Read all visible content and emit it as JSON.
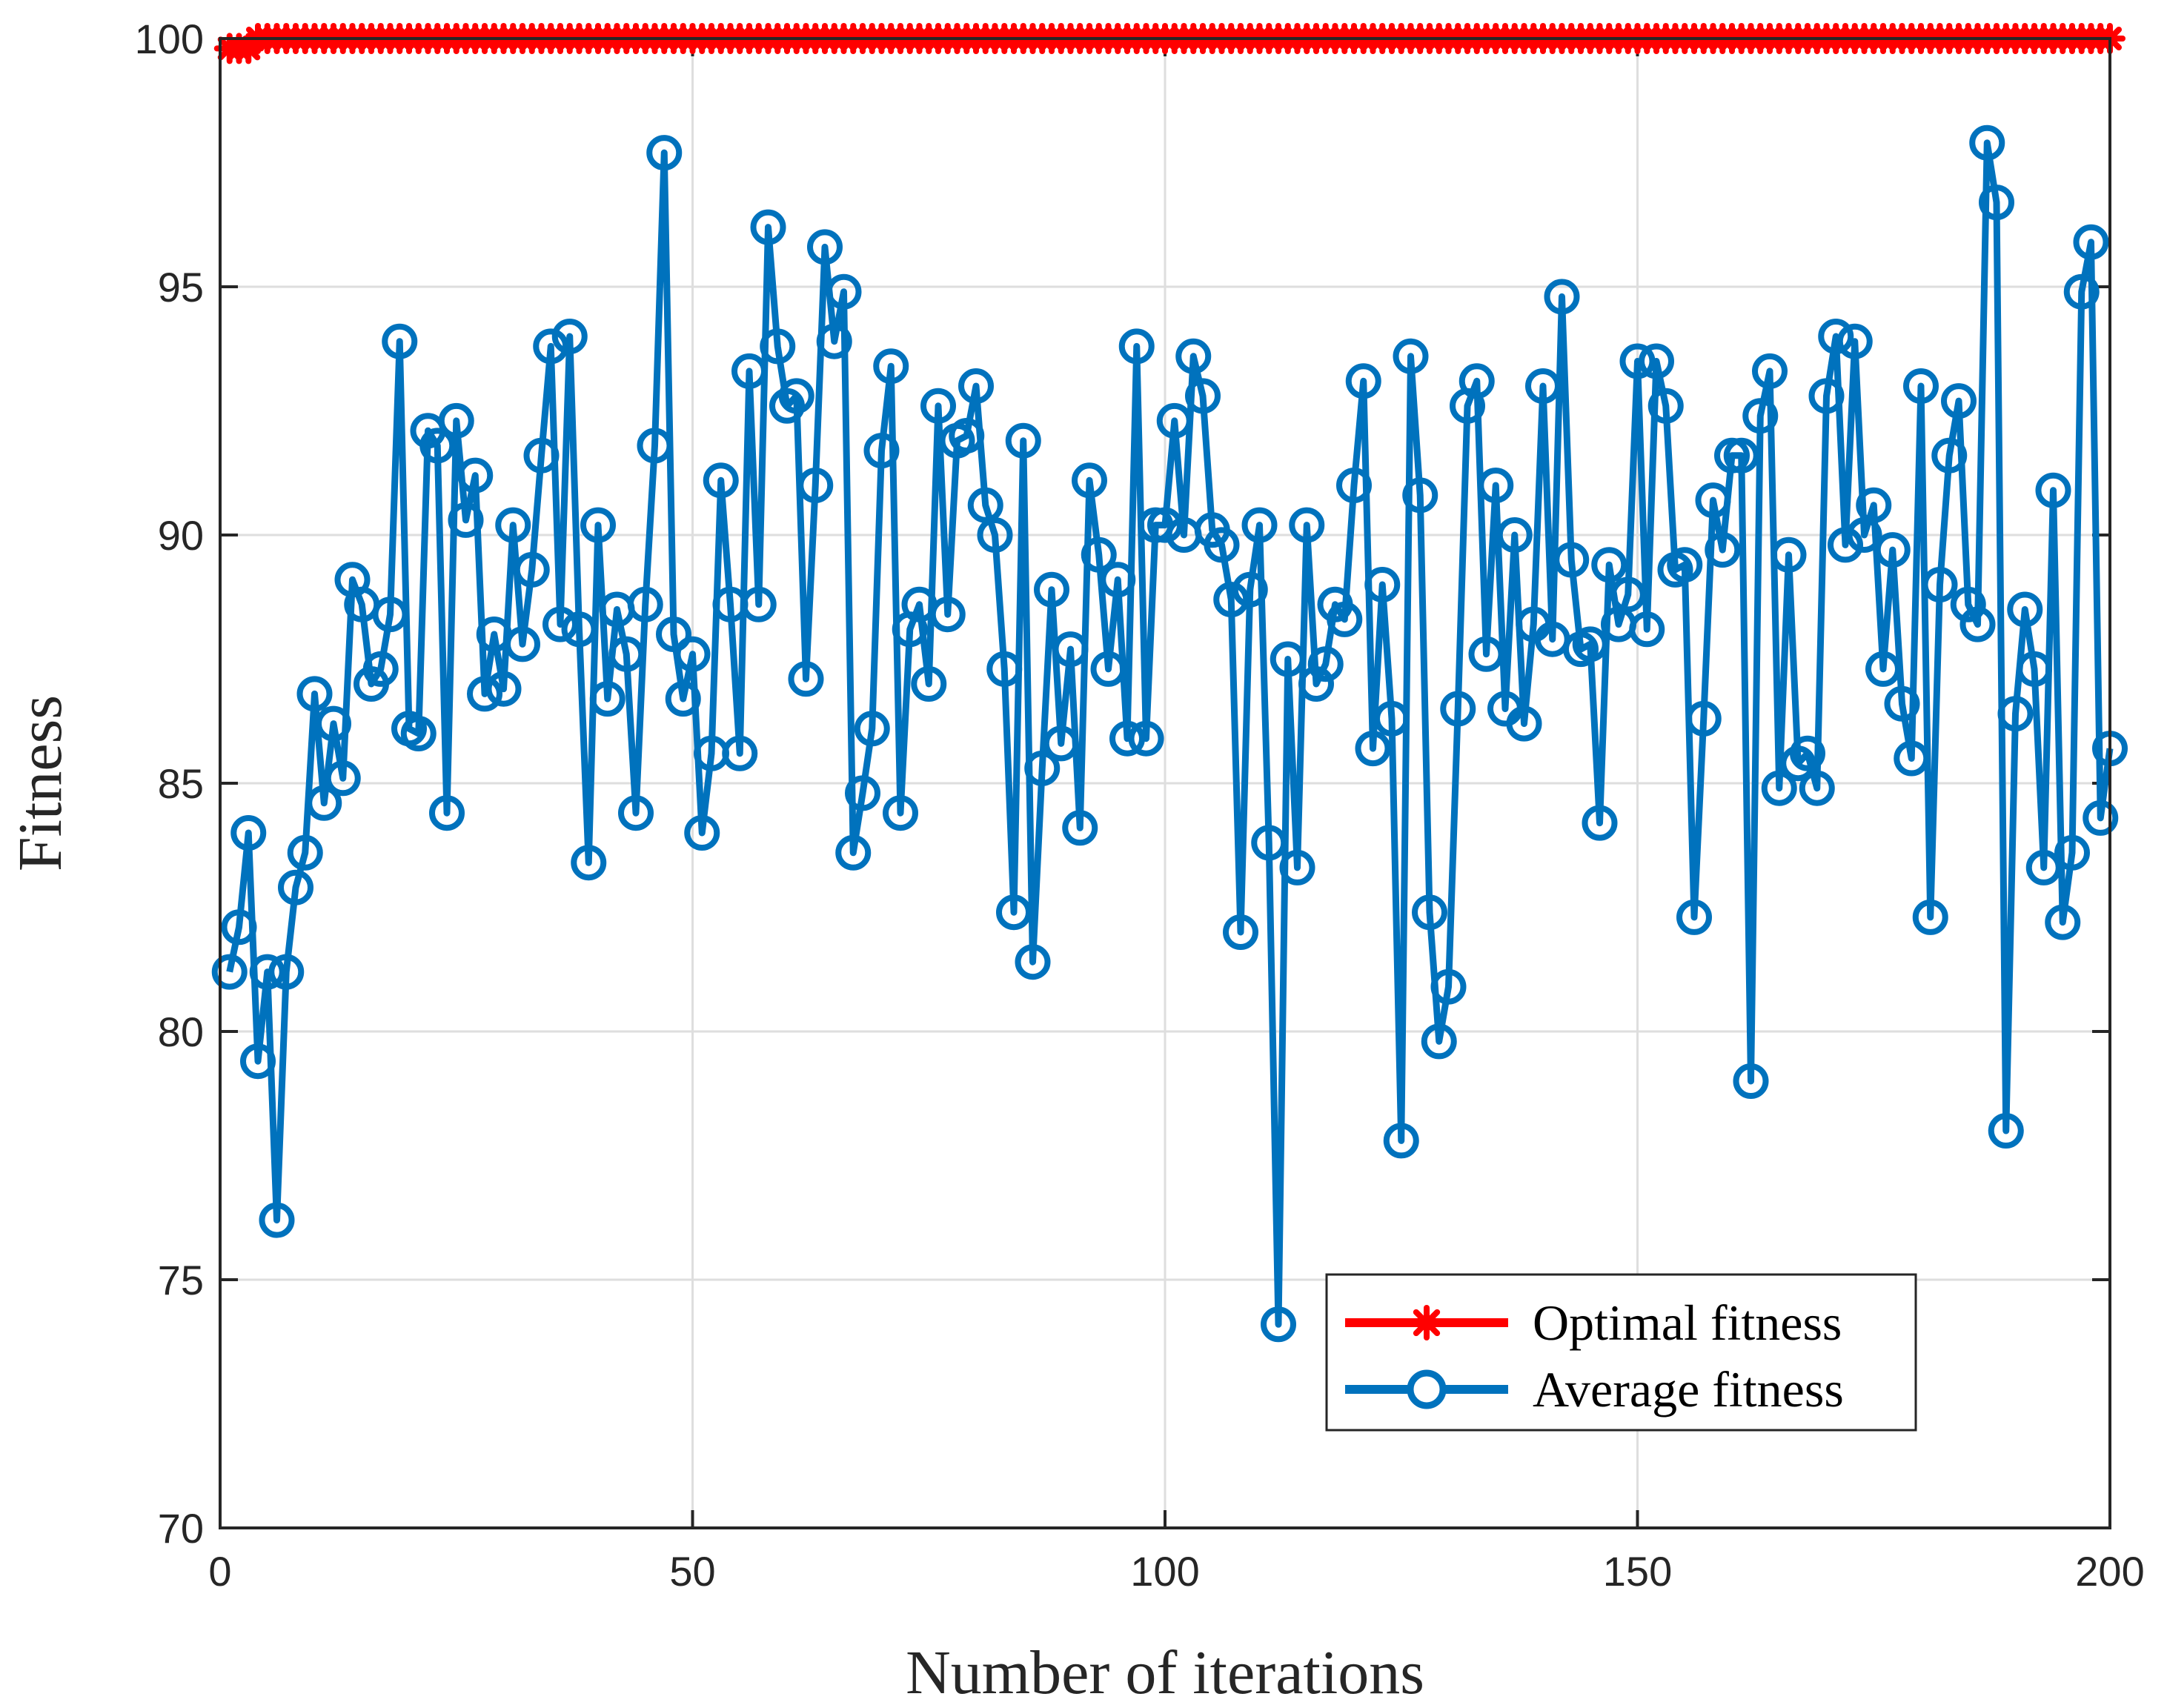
{
  "chart_data": {
    "type": "line",
    "xlabel": "Number of iterations",
    "ylabel": "Fitness",
    "xlim": [
      0,
      200
    ],
    "ylim": [
      70,
      100
    ],
    "xticks": [
      0,
      50,
      100,
      150,
      200
    ],
    "yticks": [
      70,
      75,
      80,
      85,
      90,
      95,
      100
    ],
    "grid": true,
    "legend_position": "bottom-right",
    "x": [
      1,
      2,
      3,
      4,
      5,
      6,
      7,
      8,
      9,
      10,
      11,
      12,
      13,
      14,
      15,
      16,
      17,
      18,
      19,
      20,
      21,
      22,
      23,
      24,
      25,
      26,
      27,
      28,
      29,
      30,
      31,
      32,
      33,
      34,
      35,
      36,
      37,
      38,
      39,
      40,
      41,
      42,
      43,
      44,
      45,
      46,
      47,
      48,
      49,
      50,
      51,
      52,
      53,
      54,
      55,
      56,
      57,
      58,
      59,
      60,
      61,
      62,
      63,
      64,
      65,
      66,
      67,
      68,
      69,
      70,
      71,
      72,
      73,
      74,
      75,
      76,
      77,
      78,
      79,
      80,
      81,
      82,
      83,
      84,
      85,
      86,
      87,
      88,
      89,
      90,
      91,
      92,
      93,
      94,
      95,
      96,
      97,
      98,
      99,
      100,
      101,
      102,
      103,
      104,
      105,
      106,
      107,
      108,
      109,
      110,
      111,
      112,
      113,
      114,
      115,
      116,
      117,
      118,
      119,
      120,
      121,
      122,
      123,
      124,
      125,
      126,
      127,
      128,
      129,
      130,
      131,
      132,
      133,
      134,
      135,
      136,
      137,
      138,
      139,
      140,
      141,
      142,
      143,
      144,
      145,
      146,
      147,
      148,
      149,
      150,
      151,
      152,
      153,
      154,
      155,
      156,
      157,
      158,
      159,
      160,
      161,
      162,
      163,
      164,
      165,
      166,
      167,
      168,
      169,
      170,
      171,
      172,
      173,
      174,
      175,
      176,
      177,
      178,
      179,
      180,
      181,
      182,
      183,
      184,
      185,
      186,
      187,
      188,
      189,
      190,
      191,
      192,
      193,
      194,
      195,
      196,
      197,
      198,
      199,
      200
    ],
    "series": [
      {
        "name": "Optimal fitness",
        "color": "#ff0000",
        "marker": "asterisk",
        "values": [
          99.8,
          99.8,
          99.8,
          100,
          100,
          100,
          100,
          100,
          100,
          100,
          100,
          100,
          100,
          100,
          100,
          100,
          100,
          100,
          100,
          100,
          100,
          100,
          100,
          100,
          100,
          100,
          100,
          100,
          100,
          100,
          100,
          100,
          100,
          100,
          100,
          100,
          100,
          100,
          100,
          100,
          100,
          100,
          100,
          100,
          100,
          100,
          100,
          100,
          100,
          100,
          100,
          100,
          100,
          100,
          100,
          100,
          100,
          100,
          100,
          100,
          100,
          100,
          100,
          100,
          100,
          100,
          100,
          100,
          100,
          100,
          100,
          100,
          100,
          100,
          100,
          100,
          100,
          100,
          100,
          100,
          100,
          100,
          100,
          100,
          100,
          100,
          100,
          100,
          100,
          100,
          100,
          100,
          100,
          100,
          100,
          100,
          100,
          100,
          100,
          100,
          100,
          100,
          100,
          100,
          100,
          100,
          100,
          100,
          100,
          100,
          100,
          100,
          100,
          100,
          100,
          100,
          100,
          100,
          100,
          100,
          100,
          100,
          100,
          100,
          100,
          100,
          100,
          100,
          100,
          100,
          100,
          100,
          100,
          100,
          100,
          100,
          100,
          100,
          100,
          100,
          100,
          100,
          100,
          100,
          100,
          100,
          100,
          100,
          100,
          100,
          100,
          100,
          100,
          100,
          100,
          100,
          100,
          100,
          100,
          100,
          100,
          100,
          100,
          100,
          100,
          100,
          100,
          100,
          100,
          100,
          100,
          100,
          100,
          100,
          100,
          100,
          100,
          100,
          100,
          100,
          100,
          100,
          100,
          100,
          100,
          100,
          100,
          100,
          100,
          100,
          100,
          100,
          100,
          100,
          100,
          100,
          100,
          100,
          100,
          100
        ]
      },
      {
        "name": "Average fitness",
        "color": "#0072bd",
        "marker": "circle",
        "values": [
          81.2,
          82.1,
          84.0,
          79.4,
          81.2,
          76.2,
          81.2,
          82.9,
          83.6,
          86.8,
          84.6,
          86.2,
          85.1,
          89.1,
          88.6,
          87.0,
          87.3,
          88.4,
          93.9,
          86.1,
          86.0,
          92.1,
          91.8,
          84.4,
          92.3,
          90.3,
          91.2,
          86.8,
          88.0,
          86.9,
          90.2,
          87.8,
          89.3,
          91.6,
          93.8,
          88.2,
          94.0,
          88.1,
          83.4,
          90.2,
          86.7,
          88.5,
          87.6,
          84.4,
          88.6,
          91.8,
          97.7,
          88.0,
          86.7,
          87.6,
          84.0,
          85.6,
          91.1,
          88.6,
          85.6,
          93.3,
          88.6,
          96.2,
          93.8,
          92.6,
          92.8,
          87.1,
          91.0,
          95.8,
          93.9,
          94.9,
          83.6,
          84.8,
          86.1,
          91.7,
          93.4,
          84.4,
          88.1,
          88.6,
          87.0,
          92.6,
          88.4,
          91.9,
          92.0,
          93.0,
          90.6,
          90.0,
          87.3,
          82.4,
          91.9,
          81.4,
          85.3,
          88.9,
          85.8,
          87.7,
          84.1,
          91.1,
          89.6,
          87.3,
          89.1,
          85.9,
          93.8,
          85.9,
          90.2,
          90.2,
          92.3,
          90.0,
          93.6,
          92.8,
          90.1,
          89.8,
          88.7,
          82.0,
          88.9,
          90.2,
          83.8,
          74.1,
          87.5,
          83.3,
          90.2,
          87.0,
          87.4,
          88.6,
          88.3,
          91.0,
          93.1,
          85.7,
          89.0,
          86.3,
          77.8,
          93.6,
          90.8,
          82.4,
          79.8,
          80.9,
          86.5,
          92.6,
          93.1,
          87.6,
          91.0,
          86.5,
          90.0,
          86.2,
          88.2,
          93.0,
          87.9,
          94.8,
          89.5,
          87.7,
          87.8,
          84.2,
          89.4,
          88.2,
          88.8,
          93.5,
          88.1,
          93.5,
          92.6,
          89.3,
          89.4,
          82.3,
          86.3,
          90.7,
          89.7,
          91.6,
          91.6,
          79.0,
          92.4,
          93.3,
          84.9,
          89.6,
          85.4,
          85.6,
          84.9,
          92.8,
          94.0,
          89.8,
          93.9,
          90.0,
          90.6,
          87.3,
          89.7,
          86.6,
          85.5,
          93.0,
          82.3,
          89.0,
          91.6,
          92.7,
          88.6,
          88.2,
          97.9,
          96.7,
          78.0,
          86.4,
          88.5,
          87.3,
          83.3,
          90.9,
          82.2,
          83.6,
          94.9,
          95.9,
          84.3,
          85.7
        ]
      }
    ]
  }
}
